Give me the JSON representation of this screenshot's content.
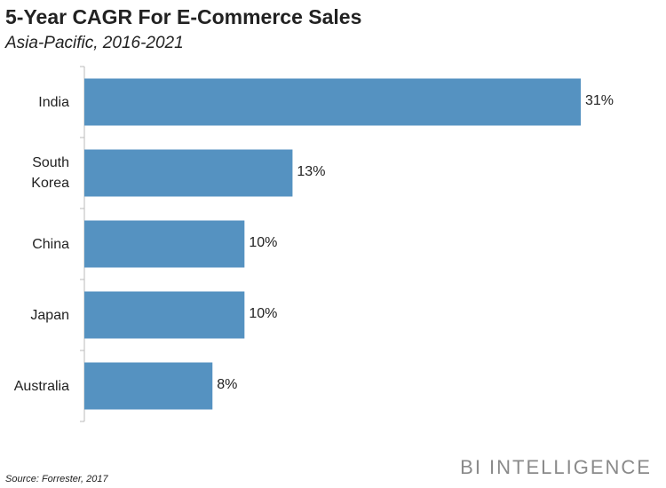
{
  "chart_data": {
    "type": "bar",
    "orientation": "horizontal",
    "title": "5-Year CAGR For E-Commerce Sales",
    "subtitle": "Asia-Pacific, 2016-2021",
    "categories": [
      "India",
      "South Korea",
      "China",
      "Japan",
      "Australia"
    ],
    "values": [
      31,
      13,
      10,
      10,
      8
    ],
    "value_labels": [
      "31%",
      "13%",
      "10%",
      "10%",
      "8%"
    ],
    "color": "#5592c1",
    "source": "Source: Forrester, 2017",
    "brand": "BI INTELLIGENCE"
  }
}
